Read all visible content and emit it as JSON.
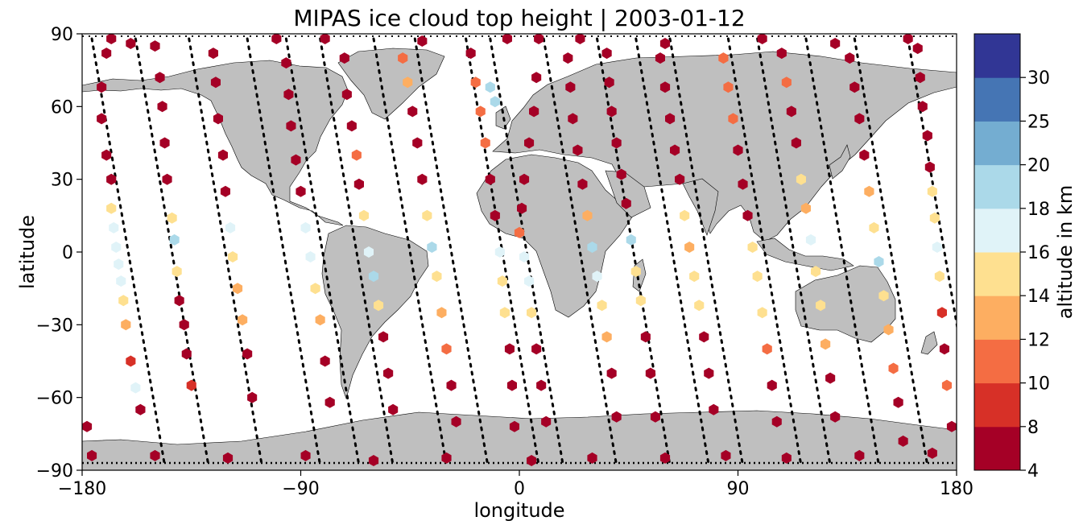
{
  "chart_data": {
    "type": "scatter",
    "title": "MIPAS ice cloud top height | 2003-01-12",
    "xlabel": "longitude",
    "ylabel": "latitude",
    "xlim": [
      -180,
      180
    ],
    "ylim": [
      -90,
      90
    ],
    "xticks": [
      -180,
      -90,
      0,
      90,
      180
    ],
    "yticks": [
      -90,
      -60,
      -30,
      0,
      30,
      60,
      90
    ],
    "xtick_labels": [
      "−180",
      "−90",
      "0",
      "90",
      "180"
    ],
    "ytick_labels": [
      "−90",
      "−60",
      "−30",
      "0",
      "30",
      "60",
      "90"
    ],
    "grid": false,
    "land_color": "#bfbfbf",
    "colorbar": {
      "label": "altitude in km",
      "bounds": [
        4,
        8,
        10,
        12,
        14,
        16,
        18,
        20,
        25,
        30
      ],
      "tick_labels": [
        "4",
        "8",
        "10",
        "12",
        "14",
        "16",
        "18",
        "20",
        "25",
        "30"
      ],
      "colors": [
        "#a50026",
        "#d73027",
        "#f46d43",
        "#fdae61",
        "#fee090",
        "#e0f3f8",
        "#abd9e9",
        "#74add1",
        "#4575b4",
        "#313695"
      ]
    },
    "tracks": [
      {
        "lon0": -176,
        "lon1": -146
      },
      {
        "lon0": -158,
        "lon1": -128
      },
      {
        "lon0": -136,
        "lon1": -106
      },
      {
        "lon0": -112,
        "lon1": -82
      },
      {
        "lon0": -96,
        "lon1": -66
      },
      {
        "lon0": -82,
        "lon1": -52
      },
      {
        "lon0": -60,
        "lon1": -30
      },
      {
        "lon0": -43,
        "lon1": -13
      },
      {
        "lon0": -22,
        "lon1": 8
      },
      {
        "lon0": -12,
        "lon1": 18
      },
      {
        "lon0": 10,
        "lon1": 40
      },
      {
        "lon0": 32,
        "lon1": 62
      },
      {
        "lon0": 48,
        "lon1": 78
      },
      {
        "lon0": 62,
        "lon1": 92
      },
      {
        "lon0": 86,
        "lon1": 116
      },
      {
        "lon0": 98,
        "lon1": 128
      },
      {
        "lon0": 118,
        "lon1": 148
      },
      {
        "lon0": 138,
        "lon1": 168
      },
      {
        "lon0": 160,
        "lon1": 190
      }
    ],
    "points": [
      [
        -168,
        88,
        6
      ],
      [
        -170,
        82,
        6
      ],
      [
        -172,
        68,
        7
      ],
      [
        -172,
        55,
        7
      ],
      [
        -170,
        40,
        7
      ],
      [
        -168,
        30,
        7
      ],
      [
        -168,
        18,
        15
      ],
      [
        -167,
        10,
        17
      ],
      [
        -166,
        2,
        17
      ],
      [
        -165,
        -5,
        17
      ],
      [
        -164,
        -12,
        17
      ],
      [
        -163,
        -20,
        15
      ],
      [
        -162,
        -30,
        13
      ],
      [
        -160,
        -45,
        9
      ],
      [
        -158,
        -56,
        17
      ],
      [
        -156,
        -65,
        7
      ],
      [
        -150,
        85,
        6
      ],
      [
        -148,
        72,
        6
      ],
      [
        -147,
        60,
        7
      ],
      [
        -146,
        45,
        7
      ],
      [
        -145,
        30,
        7
      ],
      [
        -143,
        14,
        15
      ],
      [
        -142,
        5,
        18
      ],
      [
        -141,
        -8,
        15
      ],
      [
        -140,
        -20,
        7
      ],
      [
        -138,
        -30,
        7
      ],
      [
        -137,
        -42,
        7
      ],
      [
        -135,
        -55,
        9
      ],
      [
        -126,
        82,
        7
      ],
      [
        -125,
        70,
        6
      ],
      [
        -124,
        55,
        6
      ],
      [
        -122,
        40,
        7
      ],
      [
        -121,
        25,
        7
      ],
      [
        -119,
        10,
        16
      ],
      [
        -118,
        -2,
        15
      ],
      [
        -116,
        -15,
        13
      ],
      [
        -114,
        -28,
        12
      ],
      [
        -112,
        -42,
        7
      ],
      [
        -110,
        -60,
        7
      ],
      [
        -96,
        78,
        6
      ],
      [
        -95,
        65,
        6
      ],
      [
        -94,
        52,
        7
      ],
      [
        -92,
        38,
        7
      ],
      [
        -90,
        25,
        7
      ],
      [
        -88,
        10,
        16
      ],
      [
        -86,
        -2,
        17
      ],
      [
        -84,
        -15,
        15
      ],
      [
        -82,
        -28,
        12
      ],
      [
        -80,
        -45,
        7
      ],
      [
        -78,
        -62,
        6
      ],
      [
        -72,
        80,
        7
      ],
      [
        -71,
        65,
        7
      ],
      [
        -69,
        52,
        7
      ],
      [
        -67,
        40,
        11
      ],
      [
        -66,
        28,
        7
      ],
      [
        -64,
        15,
        15
      ],
      [
        -62,
        0,
        17
      ],
      [
        -60,
        -10,
        18
      ],
      [
        -58,
        -22,
        15
      ],
      [
        -56,
        -35,
        7
      ],
      [
        -54,
        -50,
        7
      ],
      [
        -52,
        -65,
        6
      ],
      [
        -48,
        80,
        11
      ],
      [
        -46,
        70,
        13
      ],
      [
        -44,
        58,
        7
      ],
      [
        -42,
        45,
        7
      ],
      [
        -40,
        30,
        7
      ],
      [
        -38,
        15,
        15
      ],
      [
        -36,
        2,
        18
      ],
      [
        -34,
        -10,
        15
      ],
      [
        -32,
        -25,
        13
      ],
      [
        -30,
        -40,
        11
      ],
      [
        -28,
        -55,
        7
      ],
      [
        -26,
        -70,
        6
      ],
      [
        -20,
        82,
        7
      ],
      [
        -18,
        70,
        11
      ],
      [
        -16,
        58,
        11
      ],
      [
        -14,
        45,
        11
      ],
      [
        -12,
        30,
        7
      ],
      [
        -10,
        15,
        7
      ],
      [
        -8,
        0,
        17
      ],
      [
        -7,
        -12,
        15
      ],
      [
        -6,
        -25,
        14
      ],
      [
        -4,
        -40,
        7
      ],
      [
        -3,
        -55,
        7
      ],
      [
        -2,
        -72,
        6
      ],
      [
        -12,
        68,
        19
      ],
      [
        -10,
        62,
        19
      ],
      [
        8,
        88,
        6
      ],
      [
        7,
        72,
        6
      ],
      [
        6,
        58,
        6
      ],
      [
        4,
        45,
        7
      ],
      [
        2,
        30,
        7
      ],
      [
        1,
        18,
        7
      ],
      [
        0,
        8,
        11
      ],
      [
        2,
        -2,
        17
      ],
      [
        4,
        -12,
        16
      ],
      [
        5,
        -25,
        14
      ],
      [
        7,
        -40,
        7
      ],
      [
        9,
        -55,
        7
      ],
      [
        11,
        -70,
        6
      ],
      [
        20,
        80,
        6
      ],
      [
        21,
        68,
        6
      ],
      [
        22,
        55,
        7
      ],
      [
        24,
        42,
        7
      ],
      [
        26,
        28,
        7
      ],
      [
        28,
        15,
        13
      ],
      [
        30,
        2,
        18
      ],
      [
        32,
        -10,
        17
      ],
      [
        34,
        -22,
        15
      ],
      [
        36,
        -35,
        13
      ],
      [
        38,
        -50,
        7
      ],
      [
        40,
        -68,
        6
      ],
      [
        36,
        82,
        7
      ],
      [
        37,
        70,
        7
      ],
      [
        38,
        58,
        7
      ],
      [
        40,
        45,
        7
      ],
      [
        42,
        32,
        7
      ],
      [
        44,
        20,
        7
      ],
      [
        46,
        5,
        18
      ],
      [
        48,
        -8,
        15
      ],
      [
        50,
        -20,
        15
      ],
      [
        52,
        -35,
        7
      ],
      [
        54,
        -50,
        7
      ],
      [
        56,
        -68,
        6
      ],
      [
        58,
        80,
        7
      ],
      [
        60,
        68,
        7
      ],
      [
        62,
        55,
        7
      ],
      [
        64,
        42,
        7
      ],
      [
        66,
        30,
        7
      ],
      [
        68,
        15,
        15
      ],
      [
        70,
        2,
        13
      ],
      [
        72,
        -10,
        15
      ],
      [
        74,
        -22,
        15
      ],
      [
        76,
        -35,
        7
      ],
      [
        78,
        -50,
        7
      ],
      [
        80,
        -65,
        6
      ],
      [
        84,
        80,
        11
      ],
      [
        86,
        68,
        11
      ],
      [
        88,
        55,
        11
      ],
      [
        90,
        42,
        7
      ],
      [
        92,
        28,
        7
      ],
      [
        94,
        15,
        7
      ],
      [
        96,
        2,
        15
      ],
      [
        98,
        -10,
        15
      ],
      [
        100,
        -25,
        15
      ],
      [
        102,
        -40,
        11
      ],
      [
        104,
        -55,
        7
      ],
      [
        106,
        -70,
        6
      ],
      [
        108,
        82,
        7
      ],
      [
        110,
        70,
        11
      ],
      [
        112,
        58,
        7
      ],
      [
        114,
        45,
        7
      ],
      [
        116,
        30,
        15
      ],
      [
        118,
        18,
        13
      ],
      [
        120,
        5,
        17
      ],
      [
        122,
        -8,
        15
      ],
      [
        124,
        -22,
        15
      ],
      [
        126,
        -38,
        13
      ],
      [
        128,
        -52,
        7
      ],
      [
        130,
        -68,
        6
      ],
      [
        136,
        80,
        7
      ],
      [
        138,
        68,
        7
      ],
      [
        140,
        55,
        7
      ],
      [
        142,
        40,
        7
      ],
      [
        144,
        25,
        13
      ],
      [
        146,
        10,
        15
      ],
      [
        148,
        -4,
        18
      ],
      [
        150,
        -18,
        15
      ],
      [
        152,
        -32,
        13
      ],
      [
        154,
        -48,
        11
      ],
      [
        156,
        -62,
        7
      ],
      [
        158,
        -78,
        7
      ],
      [
        164,
        84,
        7
      ],
      [
        165,
        72,
        6
      ],
      [
        166,
        60,
        6
      ],
      [
        168,
        48,
        7
      ],
      [
        169,
        35,
        7
      ],
      [
        170,
        25,
        15
      ],
      [
        171,
        14,
        15
      ],
      [
        172,
        2,
        17
      ],
      [
        173,
        -10,
        15
      ],
      [
        174,
        -25,
        9
      ],
      [
        175,
        -40,
        7
      ],
      [
        176,
        -55,
        11
      ],
      [
        178,
        -72,
        7
      ],
      [
        -178,
        -72,
        7
      ],
      [
        -176,
        -84,
        6
      ],
      [
        -150,
        -84,
        6
      ],
      [
        -120,
        -85,
        6
      ],
      [
        -88,
        -84,
        6
      ],
      [
        -60,
        -86,
        6
      ],
      [
        -30,
        -85,
        6
      ],
      [
        5,
        -86,
        6
      ],
      [
        30,
        -85,
        6
      ],
      [
        60,
        -85,
        6
      ],
      [
        85,
        -84,
        6
      ],
      [
        110,
        -85,
        6
      ],
      [
        140,
        -84,
        6
      ],
      [
        170,
        -83,
        6
      ],
      [
        -160,
        86,
        6
      ],
      [
        -100,
        88,
        7
      ],
      [
        -80,
        88,
        7
      ],
      [
        -40,
        87,
        7
      ],
      [
        -5,
        88,
        6
      ],
      [
        25,
        88,
        6
      ],
      [
        60,
        86,
        7
      ],
      [
        100,
        88,
        7
      ],
      [
        130,
        86,
        6
      ],
      [
        160,
        88,
        6
      ]
    ]
  }
}
